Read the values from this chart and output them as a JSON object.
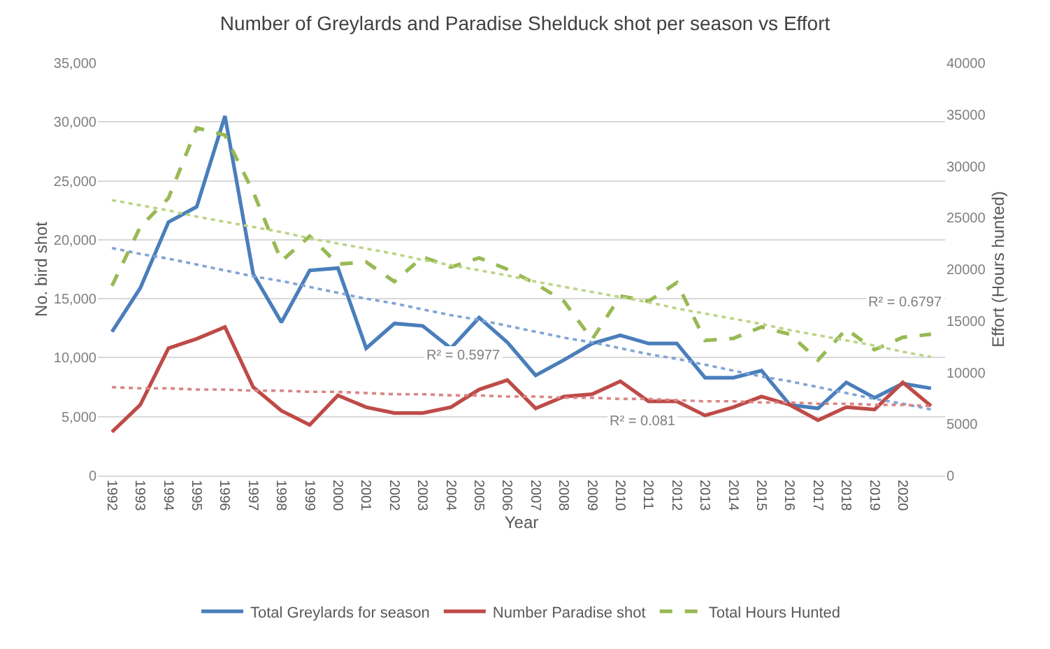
{
  "chart_data": {
    "type": "line",
    "title": "Number of Greylards and Paradise Shelduck shot per season vs Effort",
    "xlabel": "Year",
    "ylabel": "No. bird shot",
    "y2label": "Effort (Hours hunted)",
    "categories": [
      "1992",
      "1993",
      "1994",
      "1995",
      "1996",
      "1997",
      "1998",
      "1999",
      "2000",
      "2001",
      "2002",
      "2003",
      "2004",
      "2005",
      "2006",
      "2007",
      "2008",
      "2009",
      "2010",
      "2011",
      "2012",
      "2013",
      "2014",
      "2015",
      "2016",
      "2017",
      "2018",
      "2019",
      "2020",
      null
    ],
    "series": [
      {
        "name": "Total Greylards for season",
        "color": "#4a7ebb",
        "line_style": "solid",
        "values": [
          12200,
          15900,
          21500,
          22800,
          30500,
          17100,
          13000,
          17400,
          17600,
          10800,
          12900,
          12700,
          10800,
          13400,
          11300,
          8500,
          9800,
          11200,
          11900,
          11200,
          11200,
          8300,
          8300,
          8900,
          6000,
          5700,
          7900,
          6600,
          7800,
          7400
        ]
      },
      {
        "name": "Number Paradise shot",
        "color": "#be4b48",
        "line_style": "solid",
        "values": [
          3700,
          6000,
          10800,
          11600,
          12600,
          7500,
          5500,
          4300,
          6800,
          5800,
          5300,
          5300,
          5800,
          7300,
          8100,
          5700,
          6700,
          6900,
          8000,
          6300,
          6300,
          5100,
          5800,
          6700,
          6000,
          4700,
          5800,
          5600,
          7900,
          5900
        ]
      },
      {
        "name": "Total Hours Hunted",
        "color": "#98b954",
        "line_style": "dashed",
        "axis": "y2",
        "values": [
          18400,
          24100,
          26900,
          33700,
          33000,
          27500,
          20800,
          23200,
          20500,
          20700,
          18800,
          21200,
          20200,
          21100,
          20000,
          18600,
          16900,
          13200,
          17400,
          16900,
          18700,
          13100,
          13300,
          14400,
          13700,
          11200,
          14200,
          12200,
          13400,
          13700
        ]
      },
      {
        "color": "#7fa3d6",
        "line_style": "dotted",
        "values": [
          19300,
          18800,
          18400,
          17900,
          17400,
          16900,
          16500,
          16000,
          15500,
          15000,
          14600,
          14100,
          13600,
          13200,
          12700,
          12200,
          11700,
          11300,
          10800,
          10300,
          9900,
          9400,
          8900,
          8400,
          8000,
          7500,
          7000,
          6500,
          6100,
          5600
        ]
      },
      {
        "color": "#d98583",
        "line_style": "dotted",
        "values": [
          7500,
          7400,
          7400,
          7300,
          7300,
          7200,
          7200,
          7100,
          7100,
          7000,
          6900,
          6900,
          6800,
          6800,
          6700,
          6700,
          6600,
          6600,
          6500,
          6500,
          6400,
          6300,
          6300,
          6200,
          6200,
          6100,
          6100,
          6000,
          6000,
          5900
        ]
      },
      {
        "color": "#bcd486",
        "line_style": "dotted",
        "axis": "y2",
        "values": [
          26700,
          26200,
          25700,
          25100,
          24600,
          24100,
          23600,
          23000,
          22500,
          22000,
          21500,
          20900,
          20400,
          19900,
          19400,
          18800,
          18300,
          17800,
          17300,
          16800,
          16200,
          15700,
          15200,
          14700,
          14100,
          13600,
          13100,
          12600,
          12000,
          11500
        ]
      }
    ],
    "ylim": [
      0,
      35000
    ],
    "yticks": [
      {
        "value": 0,
        "label": "0"
      },
      {
        "value": 5000,
        "label": "5,000"
      },
      {
        "value": 10000,
        "label": "10,000"
      },
      {
        "value": 15000,
        "label": "15,000"
      },
      {
        "value": 20000,
        "label": "20,000"
      },
      {
        "value": 25000,
        "label": "25,000"
      },
      {
        "value": 30000,
        "label": "30,000"
      },
      {
        "value": 35000,
        "label": "35,000"
      }
    ],
    "y2lim": [
      0,
      40000
    ],
    "y2ticks": [
      0,
      5000,
      10000,
      15000,
      20000,
      25000,
      30000,
      35000,
      40000
    ],
    "annotations": [
      "R² = 0.5977",
      "R² = 0.081",
      "R² = 0.6797"
    ],
    "grid": "y",
    "legend": "bottom",
    "marker": "none"
  }
}
